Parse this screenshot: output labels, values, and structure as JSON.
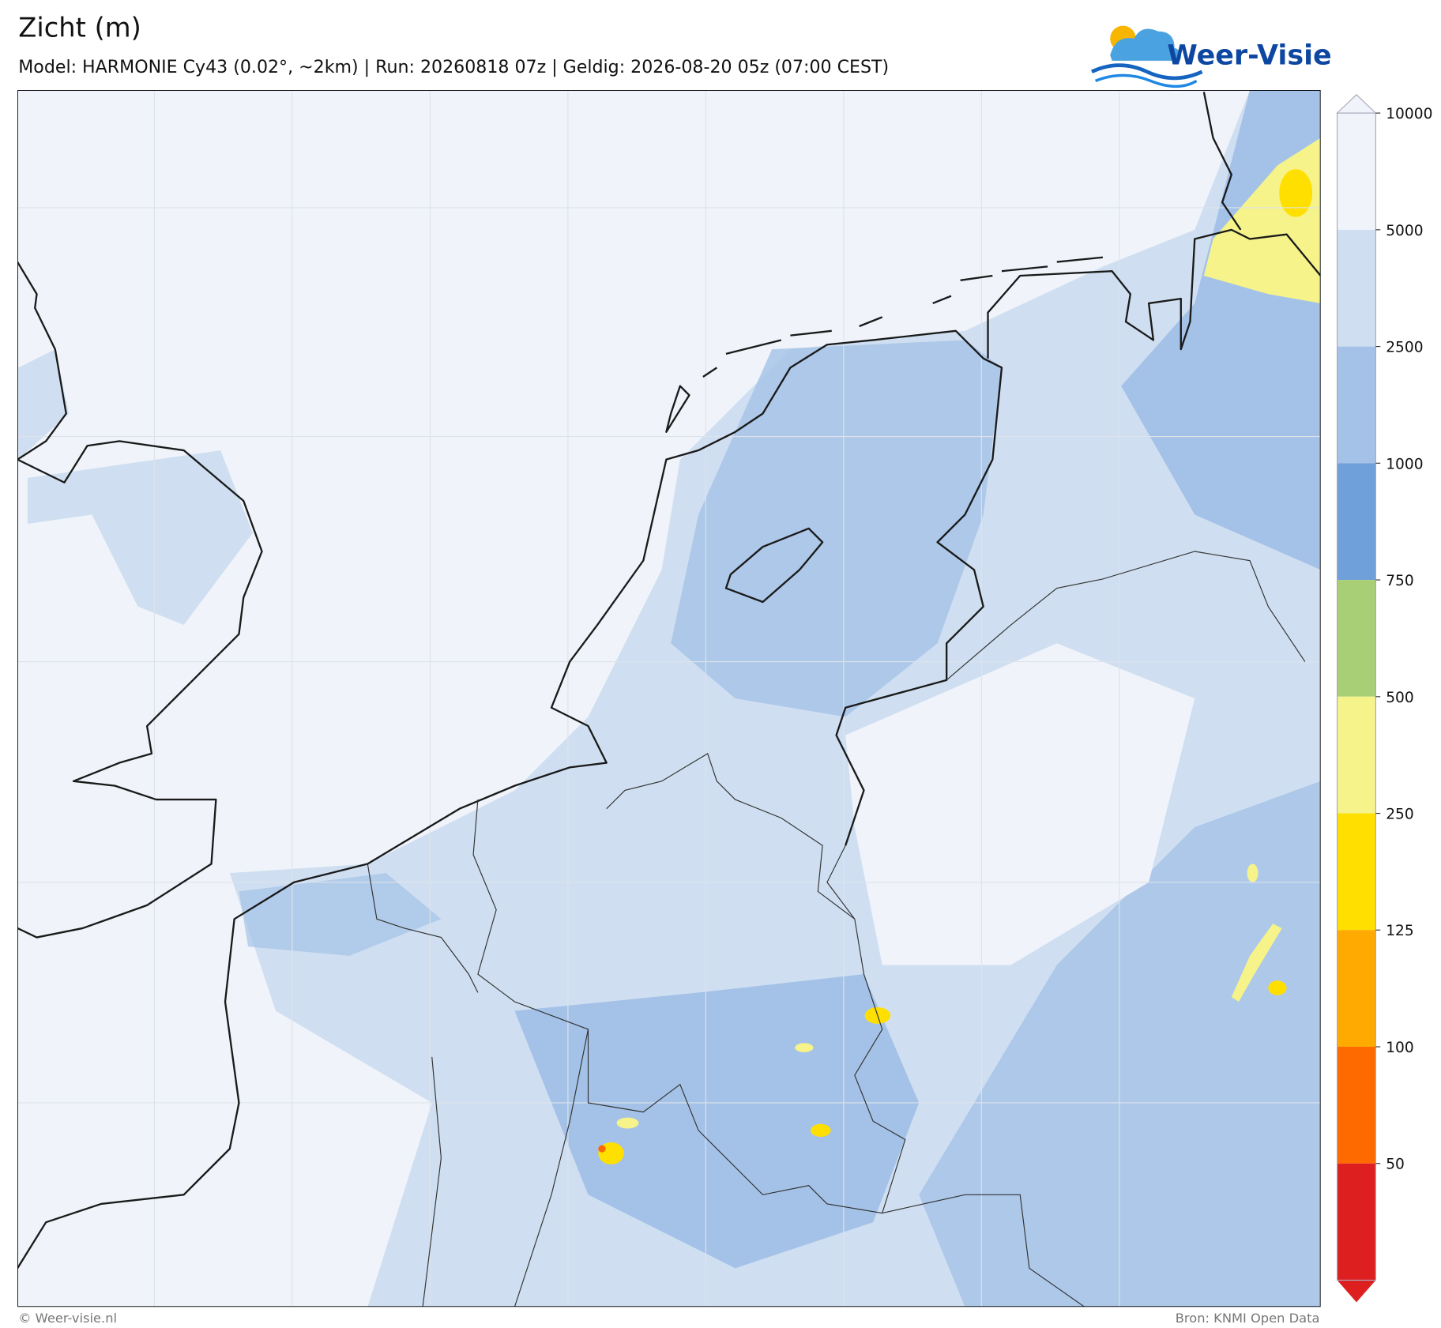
{
  "header": {
    "title": "Zicht (m)",
    "subtitle": "Model: HARMONIE Cy43 (0.02°, ~2km)  |  Run: 20260818 07z  |  Geldig: 2026-08-20 05z (07:00 CEST)"
  },
  "logo": {
    "text": "Weer-Visie"
  },
  "colorbar": {
    "levels": [
      10000,
      5000,
      2500,
      1000,
      750,
      500,
      250,
      125,
      100,
      50
    ],
    "colors": [
      "#f0f4fa",
      "#cfdff1",
      "#a4c2e7",
      "#6fa0d9",
      "#a9cf76",
      "#f5f38a",
      "#ffdf00",
      "#ffaa00",
      "#ff6a00",
      "#dd1f1f"
    ]
  },
  "footer": {
    "left": "© Weer-visie.nl",
    "right": "Bron: KNMI Open Data"
  }
}
